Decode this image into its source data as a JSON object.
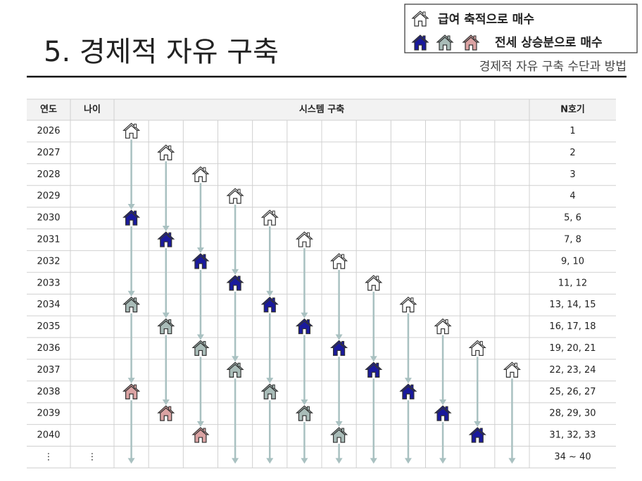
{
  "header": {
    "title": "5. 경제적 자유 구축",
    "subtitle": "경제적 자유 구축 수단과 방법"
  },
  "legend": {
    "salary": "급여 축적으로 매수",
    "deposit": "전세 상승분으로 매수"
  },
  "table": {
    "columns": [
      "연도",
      "나이",
      "시스템 구축",
      "N호기"
    ],
    "rows": [
      {
        "year": "2026",
        "n": "1"
      },
      {
        "year": "2027",
        "n": "2"
      },
      {
        "year": "2028",
        "n": "3"
      },
      {
        "year": "2029",
        "n": "4"
      },
      {
        "year": "2030",
        "n": "5, 6"
      },
      {
        "year": "2031",
        "n": "7, 8"
      },
      {
        "year": "2032",
        "n": "9, 10"
      },
      {
        "year": "2033",
        "n": "11, 12"
      },
      {
        "year": "2034",
        "n": "13, 14, 15"
      },
      {
        "year": "2035",
        "n": "16, 17, 18"
      },
      {
        "year": "2036",
        "n": "19, 20, 21"
      },
      {
        "year": "2037",
        "n": "22, 23, 24"
      },
      {
        "year": "2038",
        "n": "25, 26, 27"
      },
      {
        "year": "2039",
        "n": "28, 29, 30"
      },
      {
        "year": "2040",
        "n": "31, 32, 33"
      },
      {
        "year": "⋮",
        "age": "⋮",
        "n": "34 ~ 40"
      }
    ]
  }
}
